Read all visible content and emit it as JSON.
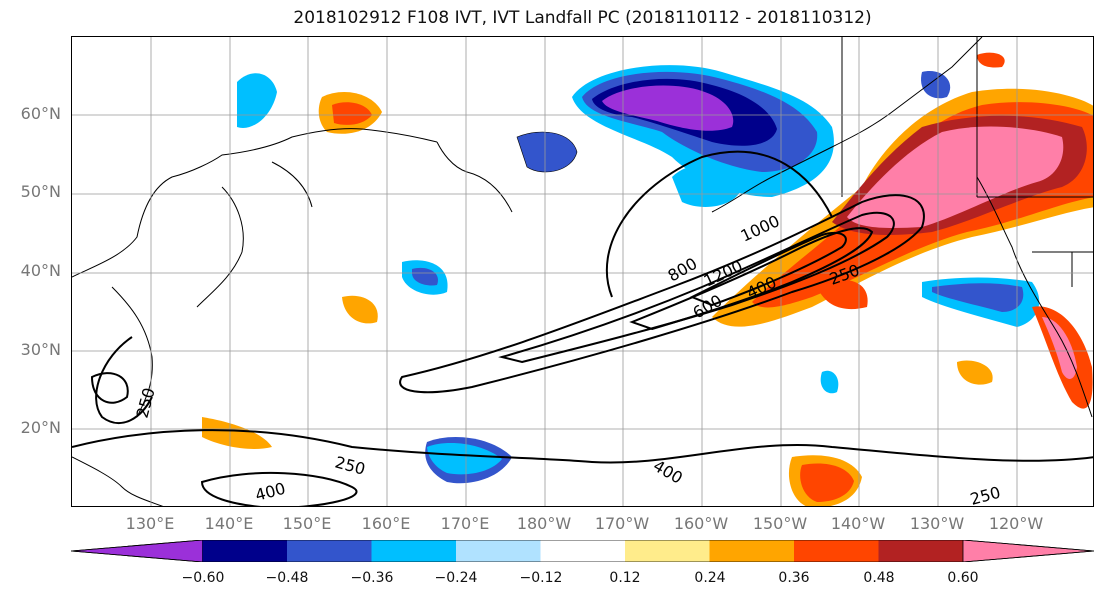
{
  "title": "2018102912 F108 IVT, IVT Landfall PC (2018110112 - 2018110312)",
  "lat_labels": [
    "60°N",
    "50°N",
    "40°N",
    "30°N",
    "20°N"
  ],
  "lon_labels": [
    "130°E",
    "140°E",
    "150°E",
    "160°E",
    "170°E",
    "180°W",
    "170°W",
    "160°W",
    "150°W",
    "140°W",
    "130°W",
    "120°W"
  ],
  "contour_labels": [
    "1000",
    "800",
    "1200",
    "600",
    "400",
    "250",
    "250",
    "250",
    "400",
    "400",
    "250"
  ],
  "colorbar": {
    "colors": [
      "#9b30d9",
      "#00008b",
      "#3355cc",
      "#00bfff",
      "#b0e2ff",
      "#ffffff",
      "#ffec8b",
      "#ffa500",
      "#ff4500",
      "#b22222",
      "#ff7fa8"
    ],
    "ticks": [
      "−0.60",
      "−0.48",
      "−0.36",
      "−0.24",
      "−0.12",
      "0.12",
      "0.24",
      "0.36",
      "0.48",
      "0.60"
    ]
  }
}
